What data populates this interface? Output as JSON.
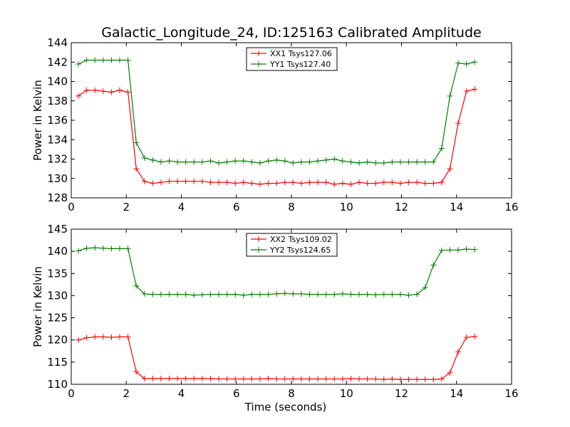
{
  "figure": {
    "title": "Galactic_Longitude_24, ID:125163 Calibrated Amplitude"
  },
  "chart_data": [
    {
      "type": "line",
      "title": "Galactic_Longitude_24, ID:125163 Calibrated Amplitude",
      "xlabel": "",
      "ylabel": "Power in Kelvin",
      "xlim": [
        0,
        16
      ],
      "ylim": [
        128,
        144
      ],
      "xticks": [
        "0",
        "2",
        "4",
        "6",
        "8",
        "10",
        "12",
        "14",
        "16"
      ],
      "yticks": [
        "128",
        "130",
        "132",
        "134",
        "136",
        "138",
        "140",
        "142",
        "144"
      ],
      "grid": false,
      "legend_position": "top-center",
      "x": [
        0.26,
        0.56,
        0.86,
        1.16,
        1.46,
        1.76,
        2.06,
        2.36,
        2.66,
        2.96,
        3.26,
        3.56,
        3.86,
        4.16,
        4.46,
        4.76,
        5.06,
        5.36,
        5.66,
        5.96,
        6.26,
        6.56,
        6.86,
        7.16,
        7.46,
        7.76,
        8.06,
        8.36,
        8.66,
        8.96,
        9.26,
        9.56,
        9.86,
        10.16,
        10.46,
        10.76,
        11.06,
        11.36,
        11.66,
        11.96,
        12.26,
        12.56,
        12.86,
        13.16,
        13.46,
        13.76,
        14.06,
        14.36,
        14.66
      ],
      "series": [
        {
          "name": "XX1 Tsys127.06",
          "color": "#ff0000",
          "values": [
            138.5,
            139.1,
            139.1,
            139.0,
            138.9,
            139.1,
            138.9,
            131.0,
            129.7,
            129.5,
            129.6,
            129.7,
            129.7,
            129.7,
            129.7,
            129.7,
            129.6,
            129.6,
            129.6,
            129.5,
            129.6,
            129.5,
            129.4,
            129.5,
            129.5,
            129.6,
            129.6,
            129.5,
            129.6,
            129.6,
            129.6,
            129.4,
            129.5,
            129.4,
            129.6,
            129.5,
            129.5,
            129.6,
            129.6,
            129.5,
            129.6,
            129.6,
            129.5,
            129.5,
            129.6,
            131.0,
            135.7,
            139.0,
            139.2
          ]
        },
        {
          "name": "YY1 Tsys127.40",
          "color": "#008000",
          "values": [
            141.8,
            142.2,
            142.2,
            142.2,
            142.2,
            142.2,
            142.2,
            133.7,
            132.1,
            131.9,
            131.7,
            131.8,
            131.7,
            131.7,
            131.7,
            131.7,
            131.8,
            131.6,
            131.7,
            131.8,
            131.8,
            131.7,
            131.6,
            131.8,
            131.9,
            131.8,
            131.6,
            131.7,
            131.7,
            131.8,
            131.9,
            132.0,
            131.8,
            131.7,
            131.6,
            131.7,
            131.6,
            131.6,
            131.7,
            131.7,
            131.7,
            131.7,
            131.7,
            131.7,
            133.1,
            138.5,
            141.9,
            141.8,
            142.0
          ]
        }
      ]
    },
    {
      "type": "line",
      "title": "",
      "xlabel": "Time (seconds)",
      "ylabel": "Power in Kelvin",
      "xlim": [
        0,
        16
      ],
      "ylim": [
        110,
        145
      ],
      "xticks": [
        "0",
        "2",
        "4",
        "6",
        "8",
        "10",
        "12",
        "14",
        "16"
      ],
      "yticks": [
        "110",
        "115",
        "120",
        "125",
        "130",
        "135",
        "140",
        "145"
      ],
      "grid": false,
      "legend_position": "top-center",
      "x": [
        0.26,
        0.56,
        0.86,
        1.16,
        1.46,
        1.76,
        2.06,
        2.36,
        2.66,
        2.96,
        3.26,
        3.56,
        3.86,
        4.16,
        4.46,
        4.76,
        5.06,
        5.36,
        5.66,
        5.96,
        6.26,
        6.56,
        6.86,
        7.16,
        7.46,
        7.76,
        8.06,
        8.36,
        8.66,
        8.96,
        9.26,
        9.56,
        9.86,
        10.16,
        10.46,
        10.76,
        11.06,
        11.36,
        11.66,
        11.96,
        12.26,
        12.56,
        12.86,
        13.16,
        13.46,
        13.76,
        14.06,
        14.36,
        14.66
      ],
      "series": [
        {
          "name": "XX2 Tsys109.02",
          "color": "#ff0000",
          "values": [
            120.0,
            120.5,
            120.7,
            120.7,
            120.6,
            120.7,
            120.7,
            112.8,
            111.3,
            111.3,
            111.3,
            111.3,
            111.3,
            111.3,
            111.3,
            111.3,
            111.3,
            111.2,
            111.2,
            111.2,
            111.2,
            111.2,
            111.2,
            111.3,
            111.2,
            111.2,
            111.2,
            111.2,
            111.2,
            111.2,
            111.2,
            111.2,
            111.2,
            111.3,
            111.2,
            111.2,
            111.2,
            111.1,
            111.2,
            111.1,
            111.1,
            111.1,
            111.1,
            111.1,
            111.2,
            112.6,
            117.3,
            120.6,
            120.8
          ]
        },
        {
          "name": "YY2 Tsys124.65",
          "color": "#008000",
          "values": [
            140.1,
            140.7,
            140.8,
            140.7,
            140.6,
            140.6,
            140.6,
            132.2,
            130.4,
            130.3,
            130.3,
            130.3,
            130.3,
            130.3,
            130.1,
            130.2,
            130.3,
            130.3,
            130.3,
            130.3,
            130.1,
            130.3,
            130.3,
            130.3,
            130.4,
            130.5,
            130.4,
            130.4,
            130.3,
            130.3,
            130.3,
            130.3,
            130.4,
            130.3,
            130.3,
            130.3,
            130.2,
            130.3,
            130.3,
            130.3,
            130.1,
            130.3,
            131.8,
            136.9,
            140.2,
            140.3,
            140.3,
            140.5,
            140.4
          ]
        }
      ]
    }
  ]
}
